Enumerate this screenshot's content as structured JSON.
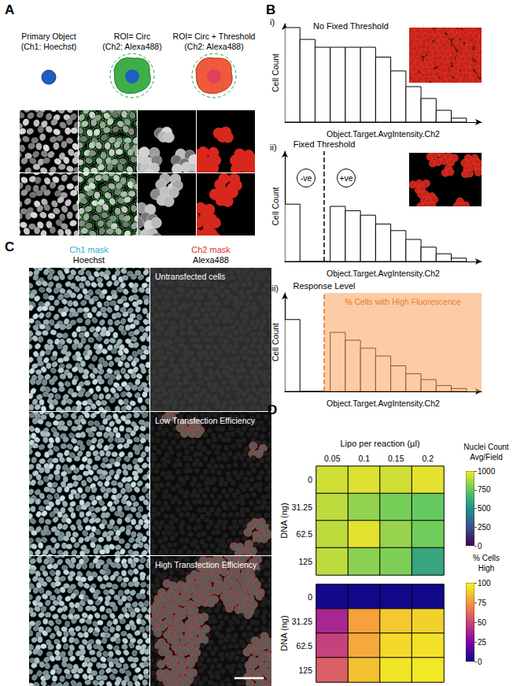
{
  "figure": {
    "panels": [
      "A",
      "B",
      "C",
      "D"
    ],
    "A": {
      "schematic": [
        {
          "title": "Primary Object",
          "subtitle": "(Ch1: Hoechst)"
        },
        {
          "title": "ROI= Circ",
          "subtitle": "(Ch2: Alexa488)"
        },
        {
          "title": "ROI= Circ + Threshold",
          "subtitle": "(Ch2: Alexa488)"
        }
      ]
    },
    "C": {
      "columns": [
        {
          "title": "Ch1 mask",
          "subtitle": "Hoechst",
          "color": "#2ab0d0"
        },
        {
          "title": "Ch2 mask",
          "subtitle": "Alexa488",
          "color": "#e0302a"
        }
      ],
      "rows": [
        "Untransfected cells",
        "Low Transfection Efficiency",
        "High Transfection Efficiency"
      ]
    }
  },
  "chart_data": [
    {
      "type": "histogram",
      "label": "i)",
      "title": "No Fixed Threshold",
      "x_label": "Object.Target.AvgIntensity.Ch2",
      "y_label": "Cell Count",
      "bins": [
        0,
        1,
        2,
        3,
        4,
        5,
        6,
        7,
        8,
        9,
        10,
        11,
        12
      ],
      "counts": [
        9.6,
        8.4,
        7.6,
        7.6,
        7.6,
        7.6,
        6.6,
        5.2,
        3.6,
        2.4,
        1.2,
        0.4
      ],
      "xlim": [
        0,
        13
      ],
      "ylim": [
        0,
        10
      ],
      "xticks": [],
      "yticks": [],
      "tick_labels": false,
      "color": "#000000"
    },
    {
      "type": "histogram",
      "label": "ii)",
      "title": "Fixed Threshold",
      "x_label": "Object.Target.AvgIntensity.Ch2",
      "y_label": "Cell Count",
      "bins": [
        0,
        1,
        2,
        3,
        4,
        5,
        6,
        7,
        8,
        9,
        10,
        11,
        12
      ],
      "counts": [
        5.2,
        0,
        0,
        5.0,
        4.6,
        4.2,
        3.4,
        2.8,
        2.0,
        1.3,
        0.7,
        0.3
      ],
      "xlim": [
        0,
        13
      ],
      "ylim": [
        0,
        10
      ],
      "xticks": [],
      "yticks": [],
      "tick_labels": false,
      "color": "#000000",
      "threshold": {
        "value": 2.6,
        "color": "#000000",
        "line_style": "dashed"
      },
      "annotations": [
        "-ve",
        "+ve"
      ]
    },
    {
      "type": "histogram",
      "label": "iii)",
      "x_label": "Object.Target.AvgIntensity.Ch2",
      "y_label": "Cell Count",
      "bins": [
        0,
        1,
        2,
        3,
        4,
        5,
        6,
        7,
        8,
        9,
        10,
        11,
        12
      ],
      "counts": [
        7.3,
        0,
        0,
        6.0,
        5.2,
        4.4,
        3.6,
        2.6,
        1.8,
        1.2,
        0.6,
        0.3
      ],
      "xlim": [
        0,
        13
      ],
      "ylim": [
        0,
        10
      ],
      "xticks": [],
      "yticks": [],
      "tick_labels": false,
      "color": "#000000",
      "threshold": {
        "value": 2.6,
        "label": "Response Level",
        "color": "#e8702a",
        "line_style": "dashed"
      },
      "region": {
        "label": "% Cells with High Fluorescence",
        "color": "#f7a35c"
      }
    },
    {
      "type": "heatmap",
      "x_label": "Lipo per reaction (µl)",
      "y_label": "DNA (ng)",
      "categories": [
        0.05,
        0.1,
        0.15,
        0.2
      ],
      "rows": [
        0,
        31.25,
        62.5,
        125
      ],
      "cells": [
        [
          930,
          950,
          930,
          960
        ],
        [
          900,
          830,
          790,
          760
        ],
        [
          900,
          960,
          840,
          780
        ],
        [
          900,
          820,
          800,
          590
        ]
      ],
      "colorbar": {
        "title": [
          "Nuclei Count",
          "Avg/Field"
        ],
        "range": [
          0,
          1000
        ],
        "ticks": [
          0,
          250,
          500,
          750,
          1000
        ]
      },
      "tick_labels": true
    },
    {
      "type": "heatmap",
      "y_label": "DNA (ng)",
      "categories": [
        0.05,
        0.1,
        0.15,
        0.2
      ],
      "rows": [
        0,
        31.25,
        62.5,
        125
      ],
      "cells": [
        [
          2,
          1,
          1,
          1
        ],
        [
          38,
          78,
          88,
          90
        ],
        [
          48,
          80,
          92,
          94
        ],
        [
          58,
          86,
          95,
          96
        ]
      ],
      "colorbar": {
        "title": [
          "% Cells",
          "High"
        ],
        "range": [
          0,
          100
        ],
        "ticks": [
          0,
          25,
          50,
          75,
          100
        ]
      },
      "tick_labels": "y"
    }
  ]
}
